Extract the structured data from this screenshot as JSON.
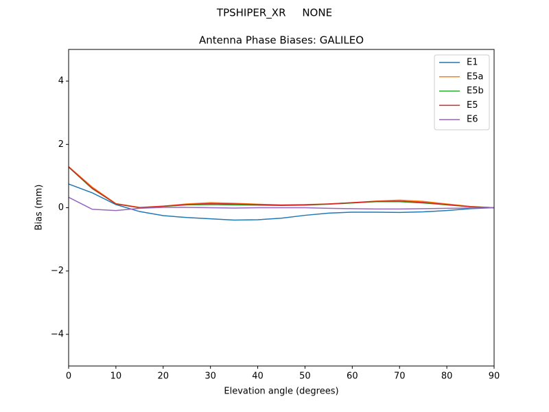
{
  "chart_data": {
    "type": "line",
    "suptitle": "TPSHIPER_XR     NONE",
    "title": "Antenna Phase Biases: GALILEO",
    "xlabel": "Elevation angle (degrees)",
    "ylabel": "Bias (mm)",
    "x": [
      0,
      5,
      10,
      15,
      20,
      25,
      30,
      35,
      40,
      45,
      50,
      55,
      60,
      65,
      70,
      75,
      80,
      85,
      90
    ],
    "series": [
      {
        "name": "E1",
        "color": "#1f77b4",
        "values": [
          0.75,
          0.47,
          0.1,
          -0.12,
          -0.25,
          -0.31,
          -0.35,
          -0.39,
          -0.38,
          -0.33,
          -0.24,
          -0.17,
          -0.14,
          -0.14,
          -0.15,
          -0.13,
          -0.09,
          -0.03,
          0
        ]
      },
      {
        "name": "E5a",
        "color": "#ff7f0e",
        "values": [
          1.3,
          0.65,
          0.13,
          0.01,
          0.05,
          0.12,
          0.16,
          0.14,
          0.11,
          0.09,
          0.1,
          0.12,
          0.16,
          0.21,
          0.24,
          0.2,
          0.12,
          0.04,
          0
        ]
      },
      {
        "name": "E5b",
        "color": "#2ca02c",
        "values": [
          1.28,
          0.6,
          0.12,
          0.0,
          0.04,
          0.09,
          0.1,
          0.09,
          0.08,
          0.07,
          0.08,
          0.11,
          0.15,
          0.19,
          0.19,
          0.15,
          0.09,
          0.03,
          0
        ]
      },
      {
        "name": "E5",
        "color": "#d62728",
        "values": [
          1.29,
          0.62,
          0.12,
          0.0,
          0.05,
          0.1,
          0.13,
          0.12,
          0.1,
          0.08,
          0.09,
          0.12,
          0.16,
          0.2,
          0.21,
          0.17,
          0.1,
          0.03,
          0
        ]
      },
      {
        "name": "E6",
        "color": "#9467bd",
        "values": [
          0.33,
          -0.05,
          -0.09,
          -0.02,
          0.01,
          0.01,
          0.0,
          -0.01,
          0.0,
          0.0,
          0.0,
          -0.02,
          -0.03,
          -0.04,
          -0.04,
          -0.03,
          -0.02,
          -0.01,
          0
        ]
      }
    ],
    "xlim": [
      0,
      90
    ],
    "xticks": [
      0,
      10,
      20,
      30,
      40,
      50,
      60,
      70,
      80,
      90
    ],
    "ylim": [
      -5,
      5
    ],
    "yticks": [
      {
        "value": -4,
        "label": "−4"
      },
      {
        "value": -2,
        "label": "−2"
      },
      0,
      2,
      4
    ],
    "legend": "upper right"
  }
}
